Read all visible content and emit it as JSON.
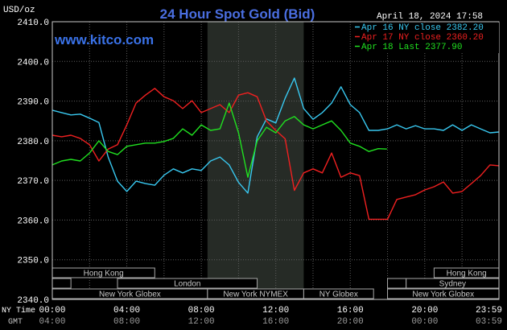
{
  "header": {
    "site": "www.kitco.com",
    "date": "April 18, 2024 17:58"
  },
  "colors": {
    "background": "#000000",
    "title": "#4a6ee0",
    "site": "#3a72e8",
    "highlight": "#262b26",
    "grid": "#5e5e5e",
    "session_border": "#a8a8a8",
    "axis": "#c8c8c8"
  },
  "chart_data": {
    "type": "line",
    "title": "24 Hour Spot Gold (Bid)",
    "ylabel": "USD/oz",
    "xlabel_ny": "NY Time",
    "xlabel_gmt": "GMT",
    "ylim": [
      2340,
      2410
    ],
    "ytick_labels": [
      "2410.0",
      "2400.0",
      "2390.0",
      "2380.0",
      "2370.0",
      "2360.0",
      "2350.0",
      "2340.0"
    ],
    "xlim": [
      "00:00",
      "23:59"
    ],
    "xticks": [
      "00:00",
      "04:00",
      "08:00",
      "12:00",
      "16:00",
      "20:00",
      "23:59"
    ],
    "xticks_gmt": [
      "04:00",
      "08:00",
      "12:00",
      "16:00",
      "20:00",
      "00:00",
      "03:59"
    ],
    "grid": true,
    "legend": "top-right",
    "highlight": {
      "start": "08:20",
      "end": "13:30"
    },
    "sessions": [
      [
        {
          "label": "Hong Kong",
          "start": "00:00",
          "end": "05:30"
        },
        {
          "label": "Hong Kong",
          "start": "20:30",
          "end": "23:59"
        }
      ],
      [
        {
          "start": "00:00",
          "end": "01:00"
        },
        {
          "label": "London",
          "start": "03:30",
          "end": "11:00"
        },
        {
          "start": "18:00",
          "end": "19:00"
        },
        {
          "label": "Sydney",
          "start": "19:00",
          "end": "23:59"
        }
      ],
      [
        {
          "label": "New York Globex",
          "start": "00:00",
          "end": "08:20"
        },
        {
          "label": "New York NYMEX",
          "start": "08:20",
          "end": "13:30"
        },
        {
          "label": "NY Globex",
          "start": "13:30",
          "end": "17:15"
        },
        {
          "label": "New York Globex",
          "start": "18:00",
          "end": "23:59"
        }
      ]
    ],
    "x": [
      "00:00",
      "00:30",
      "01:00",
      "01:30",
      "02:00",
      "02:30",
      "03:00",
      "03:30",
      "04:00",
      "04:30",
      "05:00",
      "05:30",
      "06:00",
      "06:30",
      "07:00",
      "07:30",
      "08:00",
      "08:30",
      "09:00",
      "09:30",
      "10:00",
      "10:30",
      "11:00",
      "11:30",
      "12:00",
      "12:30",
      "13:00",
      "13:30",
      "14:00",
      "14:30",
      "15:00",
      "15:30",
      "16:00",
      "16:30",
      "17:00",
      "17:30",
      "18:00",
      "18:30",
      "19:00",
      "19:30",
      "20:00",
      "20:30",
      "21:00",
      "21:30",
      "22:00",
      "22:30",
      "23:00",
      "23:30",
      "23:59"
    ],
    "series": [
      {
        "name": "Apr 16 NY close 2382.20",
        "color": "#38c8f0",
        "values": [
          2387.7,
          2387.1,
          2386.5,
          2386.7,
          2385.7,
          2384.6,
          2375.9,
          2369.8,
          2367.2,
          2369.8,
          2369.2,
          2368.8,
          2371.3,
          2372.9,
          2371.9,
          2372.9,
          2372.5,
          2374.9,
          2375.9,
          2373.9,
          2369.5,
          2366.8,
          2381.0,
          2385.5,
          2384.5,
          2390.7,
          2395.8,
          2388.1,
          2385.4,
          2387.1,
          2389.5,
          2393.6,
          2389.1,
          2387.1,
          2382.6,
          2382.6,
          2383.0,
          2384.0,
          2383.0,
          2383.8,
          2383.0,
          2383.0,
          2382.6,
          2384.0,
          2382.6,
          2384.0,
          2383.0,
          2382.0,
          2382.2
        ]
      },
      {
        "name": "Apr 17 NY close 2360.20",
        "color": "#f02020",
        "values": [
          2381.4,
          2381.0,
          2381.4,
          2380.6,
          2379.0,
          2374.9,
          2377.9,
          2379.0,
          2384.0,
          2389.5,
          2391.5,
          2393.2,
          2391.1,
          2390.1,
          2388.1,
          2390.1,
          2387.1,
          2388.1,
          2389.1,
          2387.1,
          2391.5,
          2392.1,
          2391.1,
          2385.0,
          2382.6,
          2380.5,
          2367.5,
          2371.9,
          2372.9,
          2371.9,
          2376.9,
          2370.8,
          2371.9,
          2371.2,
          2360.2,
          2360.2,
          2360.2,
          2365.2,
          2365.8,
          2366.4,
          2367.6,
          2368.4,
          2369.6,
          2366.8,
          2367.2,
          2369.2,
          2371.2,
          2373.9,
          2373.7
        ]
      },
      {
        "name": "Apr 18 Last 2377.90",
        "color": "#20e020",
        "x": [
          "00:00",
          "00:30",
          "01:00",
          "01:30",
          "02:00",
          "02:30",
          "03:00",
          "03:30",
          "04:00",
          "04:30",
          "05:00",
          "05:30",
          "06:00",
          "06:30",
          "07:00",
          "07:30",
          "08:00",
          "08:30",
          "09:00",
          "09:30",
          "10:00",
          "10:30",
          "11:00",
          "11:30",
          "12:00",
          "12:30",
          "13:00",
          "13:30",
          "14:00",
          "14:30",
          "15:00",
          "15:30",
          "16:00",
          "16:30",
          "17:00",
          "17:30",
          "17:58"
        ],
        "values": [
          2373.9,
          2374.9,
          2375.3,
          2374.9,
          2376.9,
          2380.0,
          2377.3,
          2376.5,
          2378.6,
          2379.0,
          2379.4,
          2379.4,
          2379.8,
          2380.6,
          2383.0,
          2381.4,
          2384.0,
          2382.6,
          2383.0,
          2389.5,
          2382.0,
          2370.8,
          2380.0,
          2383.4,
          2382.0,
          2385.0,
          2386.1,
          2384.0,
          2383.0,
          2384.0,
          2385.0,
          2382.6,
          2379.4,
          2378.6,
          2377.3,
          2378.0,
          2377.9
        ]
      }
    ]
  }
}
